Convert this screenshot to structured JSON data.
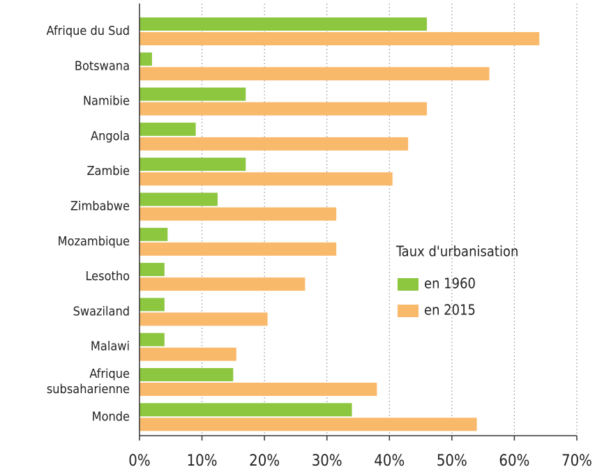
{
  "chart_data": {
    "type": "hbar",
    "categories": [
      "Afrique du Sud",
      "Botswana",
      "Namibie",
      "Angola",
      "Zambie",
      "Zimbabwe",
      "Mozambique",
      "Lesotho",
      "Swaziland",
      "Malawi",
      "Afrique\nsubsaharienne",
      "Monde"
    ],
    "series": [
      {
        "name": "en 1960",
        "color": "#8dc63f",
        "values": [
          46,
          2,
          17,
          9,
          17,
          12.5,
          4.5,
          4,
          4,
          4,
          15,
          34
        ]
      },
      {
        "name": "en 2015",
        "color": "#f9b96b",
        "values": [
          64,
          56,
          46,
          43,
          40.5,
          31.5,
          31.5,
          26.5,
          20.5,
          15.5,
          38,
          54
        ]
      }
    ],
    "legend_title": "Taux d'urbanisation",
    "xlim": [
      0,
      70
    ],
    "xticks": [
      {
        "value": 0,
        "label": "0%"
      },
      {
        "value": 10,
        "label": "10%"
      },
      {
        "value": 20,
        "label": "20%"
      },
      {
        "value": 30,
        "label": "30%"
      },
      {
        "value": 40,
        "label": "40%"
      },
      {
        "value": 50,
        "label": "50%"
      },
      {
        "value": 60,
        "label": "60%"
      },
      {
        "value": 70,
        "label": "70%"
      }
    ],
    "grid": true
  }
}
